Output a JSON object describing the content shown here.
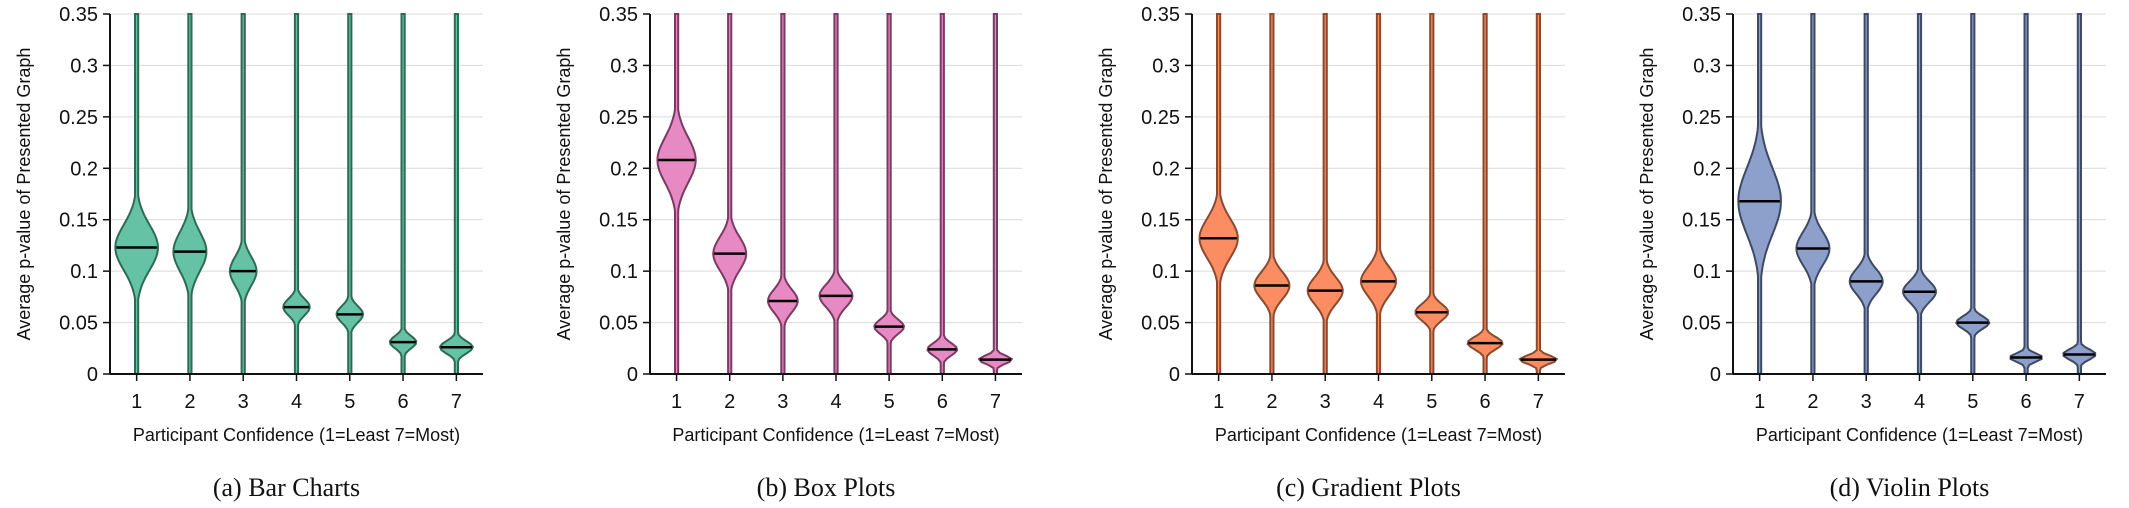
{
  "chart_data": [
    {
      "type": "violin",
      "caption": "(a) Bar Charts",
      "xlabel": "Participant Confidence (1=Least 7=Most)",
      "ylabel": "Average p-value of Presented Graph",
      "categories": [
        "1",
        "2",
        "3",
        "4",
        "5",
        "6",
        "7"
      ],
      "ylim": [
        0,
        0.35
      ],
      "yticks": [
        "0",
        "0.05",
        "0.1",
        "0.15",
        "0.2",
        "0.25",
        "0.3",
        "0.35"
      ],
      "grid": "horizontal",
      "fill_color": "#66c2a5",
      "stroke_color": "#2e6b55",
      "medians": [
        0.123,
        0.119,
        0.1,
        0.065,
        0.058,
        0.031,
        0.026
      ],
      "spread": [
        0.022,
        0.019,
        0.014,
        0.008,
        0.008,
        0.006,
        0.006
      ],
      "max_half_width": [
        0.8,
        0.62,
        0.5,
        0.5,
        0.5,
        0.5,
        0.62
      ]
    },
    {
      "type": "violin",
      "caption": "(b) Box Plots",
      "xlabel": "Participant Confidence (1=Least 7=Most)",
      "ylabel": "Average p-value of Presented Graph",
      "categories": [
        "1",
        "2",
        "3",
        "4",
        "5",
        "6",
        "7"
      ],
      "ylim": [
        0,
        0.35
      ],
      "yticks": [
        "0",
        "0.05",
        "0.1",
        "0.15",
        "0.2",
        "0.25",
        "0.3",
        "0.35"
      ],
      "grid": "horizontal",
      "fill_color": "#e78ac3",
      "stroke_color": "#7a3a63",
      "medians": [
        0.208,
        0.117,
        0.071,
        0.076,
        0.046,
        0.024,
        0.014
      ],
      "spread": [
        0.022,
        0.016,
        0.011,
        0.011,
        0.007,
        0.006,
        0.004
      ],
      "max_half_width": [
        0.72,
        0.62,
        0.56,
        0.62,
        0.56,
        0.56,
        0.62
      ]
    },
    {
      "type": "violin",
      "caption": "(c) Gradient Plots",
      "xlabel": "Participant Confidence (1=Least 7=Most)",
      "ylabel": "Average p-value of Presented Graph",
      "categories": [
        "1",
        "2",
        "3",
        "4",
        "5",
        "6",
        "7"
      ],
      "ylim": [
        0,
        0.35
      ],
      "yticks": [
        "0",
        "0.05",
        "0.1",
        "0.15",
        "0.2",
        "0.25",
        "0.3",
        "0.35"
      ],
      "grid": "horizontal",
      "fill_color": "#fc8d62",
      "stroke_color": "#8a4a2f",
      "medians": [
        0.132,
        0.086,
        0.081,
        0.09,
        0.06,
        0.03,
        0.014
      ],
      "spread": [
        0.019,
        0.013,
        0.013,
        0.014,
        0.008,
        0.006,
        0.004
      ],
      "max_half_width": [
        0.72,
        0.66,
        0.66,
        0.66,
        0.62,
        0.66,
        0.7
      ]
    },
    {
      "type": "violin",
      "caption": "(d) Violin Plots",
      "xlabel": "Participant Confidence (1=Least 7=Most)",
      "ylabel": "Average p-value of Presented Graph",
      "categories": [
        "1",
        "2",
        "3",
        "4",
        "5",
        "6",
        "7"
      ],
      "ylim": [
        0,
        0.35
      ],
      "yticks": [
        "0",
        "0.05",
        "0.1",
        "0.15",
        "0.2",
        "0.25",
        "0.3",
        "0.35"
      ],
      "grid": "horizontal",
      "fill_color": "#8da0cb",
      "stroke_color": "#3e4a63",
      "medians": [
        0.168,
        0.122,
        0.09,
        0.08,
        0.05,
        0.016,
        0.019
      ],
      "spread": [
        0.032,
        0.016,
        0.012,
        0.01,
        0.006,
        0.004,
        0.005
      ],
      "max_half_width": [
        0.8,
        0.62,
        0.62,
        0.62,
        0.62,
        0.62,
        0.62
      ]
    }
  ]
}
